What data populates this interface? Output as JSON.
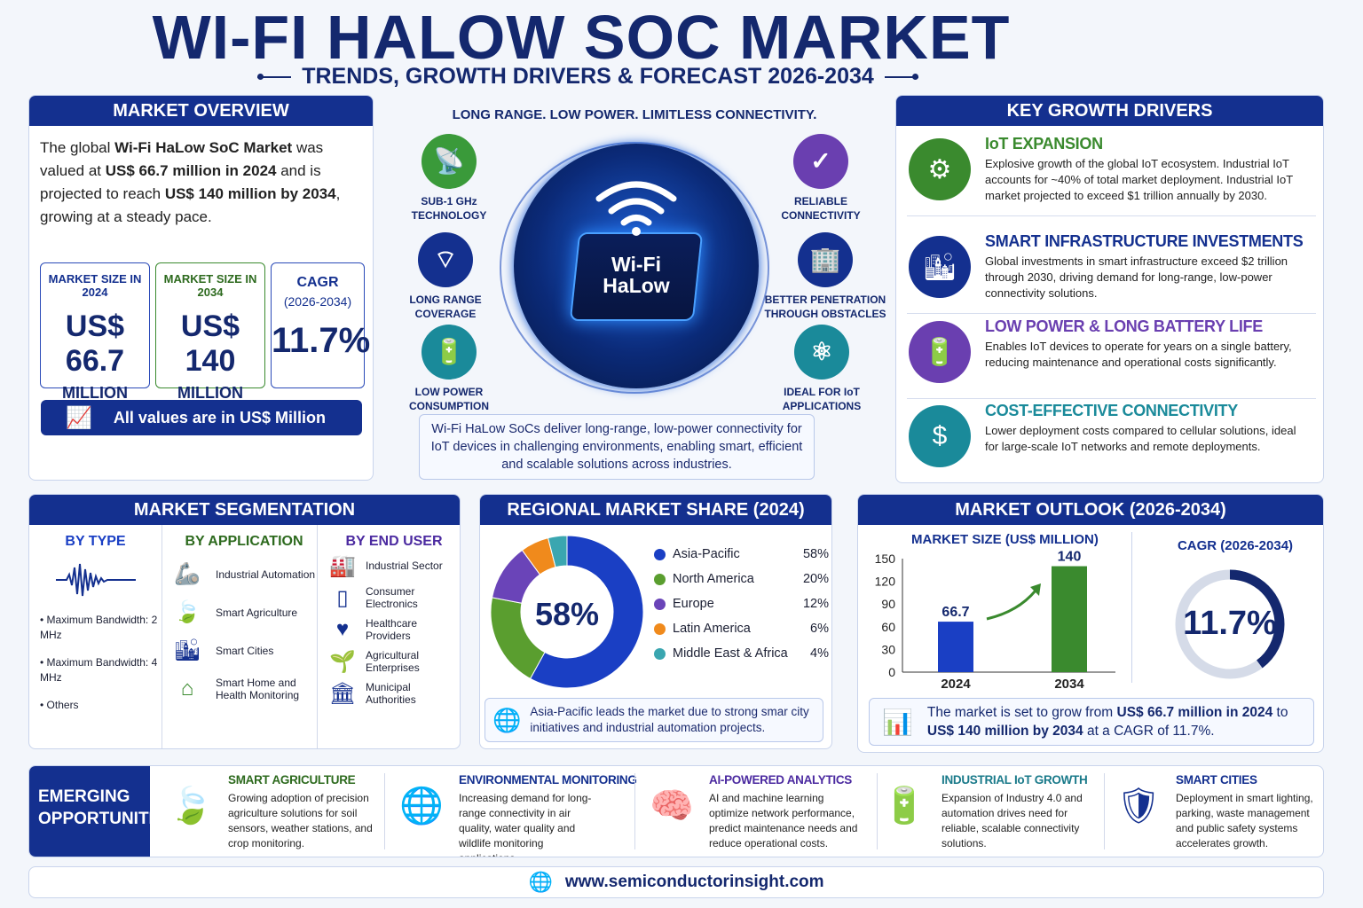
{
  "header": {
    "title": "WI-FI HALOW SOC MARKET",
    "subtitle": "TRENDS, GROWTH DRIVERS & FORECAST 2026-2034"
  },
  "overview": {
    "heading": "MARKET OVERVIEW",
    "p1": "The global ",
    "p2": "Wi-Fi HaLow SoC Market",
    "p3": " was valued at ",
    "p4": "US$ 66.7 million in 2024",
    "p5": " and is projected to reach ",
    "p6": "US$ 140 million by 2034",
    "p7": ", growing at a steady pace.",
    "stats": [
      {
        "label": "MARKET SIZE IN 2024",
        "value": "US$ 66.7",
        "unit": "MILLION",
        "color": "#2a4ab8"
      },
      {
        "label": "MARKET SIZE IN 2034",
        "value": "US$ 140",
        "unit": "MILLION",
        "color": "#3a8a2e"
      },
      {
        "label": "CAGR",
        "sub": "(2026-2034)",
        "value": "11.7%",
        "color": "#2a4ab8"
      }
    ],
    "note": "All values are in US$ Million"
  },
  "center": {
    "tagline": "LONG RANGE. LOW POWER. LIMITLESS CONNECTIVITY.",
    "chip_line1": "Wi-Fi",
    "chip_line2": "HaLow",
    "features": [
      {
        "l1": "SUB-1 GHz",
        "l2": "TECHNOLOGY",
        "icon": "antenna-icon",
        "color": "#3a9a3a"
      },
      {
        "l1": "LONG RANGE",
        "l2": "COVERAGE",
        "icon": "signal-icon",
        "color": "#14308f"
      },
      {
        "l1": "LOW POWER",
        "l2": "CONSUMPTION",
        "icon": "battery-leaf-icon",
        "color": "#1a8a9a"
      },
      {
        "l1": "RELIABLE",
        "l2": "CONNECTIVITY",
        "icon": "shield-check-icon",
        "color": "#6a3fb0"
      },
      {
        "l1": "BETTER PENETRATION",
        "l2": "THROUGH OBSTACLES",
        "icon": "building-icon",
        "color": "#14308f"
      },
      {
        "l1": "IDEAL FOR IoT",
        "l2": "APPLICATIONS",
        "icon": "network-icon",
        "color": "#1a8a9a"
      }
    ],
    "note": "Wi-Fi HaLow SoCs deliver long-range, low-power connectivity for IoT devices in challenging environments, enabling smart, efficient and scalable solutions across industries."
  },
  "drivers": {
    "heading": "KEY GROWTH DRIVERS",
    "items": [
      {
        "title": "IoT EXPANSION",
        "text": "Explosive growth of the global IoT ecosystem. Industrial IoT accounts for ~40% of total market deployment. Industrial IoT market projected to exceed $1 trillion annually by 2030.",
        "color": "#3a8a2e",
        "icon": "iot-devices-icon"
      },
      {
        "title": "SMART INFRASTRUCTURE INVESTMENTS",
        "text": "Global investments in smart infrastructure exceed $2 trillion through 2030, driving demand for long-range, low-power connectivity solutions.",
        "color": "#14308f",
        "icon": "city-icon"
      },
      {
        "title": "LOW POWER & LONG BATTERY LIFE",
        "text": "Enables IoT devices to operate for years on a single battery, reducing maintenance and operational costs significantly.",
        "color": "#6a3fb0",
        "icon": "battery-icon"
      },
      {
        "title": "COST-EFFECTIVE CONNECTIVITY",
        "text": "Lower deployment costs compared to cellular solutions, ideal for large-scale IoT networks and remote deployments.",
        "color": "#1a8a9a",
        "icon": "dollar-icon"
      }
    ]
  },
  "segmentation": {
    "heading": "MARKET SEGMENTATION",
    "by_type": {
      "title": "BY TYPE",
      "items": [
        "Maximum Bandwidth: 2 MHz",
        "Maximum Bandwidth: 4 MHz",
        "Others"
      ]
    },
    "by_application": {
      "title": "BY APPLICATION",
      "items": [
        {
          "label": "Industrial Automation",
          "icon": "robot-arm-icon"
        },
        {
          "label": "Smart Agriculture",
          "icon": "leaf-icon"
        },
        {
          "label": "Smart Cities",
          "icon": "buildings-icon"
        },
        {
          "label": "Smart Home and Health Monitoring",
          "icon": "home-health-icon"
        }
      ]
    },
    "by_end_user": {
      "title": "BY END USER",
      "items": [
        {
          "label": "Industrial Sector",
          "icon": "factory-icon"
        },
        {
          "label": "Consumer Electronics",
          "icon": "tablet-icon"
        },
        {
          "label": "Healthcare Providers",
          "icon": "heart-icon"
        },
        {
          "label": "Agricultural Enterprises",
          "icon": "sprout-icon"
        },
        {
          "label": "Municipal Authorities",
          "icon": "government-icon"
        }
      ]
    }
  },
  "chart_data": [
    {
      "type": "pie",
      "title": "REGIONAL MARKET SHARE (2024)",
      "center_label": "58%",
      "categories": [
        "Asia-Pacific",
        "North America",
        "Europe",
        "Latin America",
        "Middle East & Africa"
      ],
      "values": [
        58,
        20,
        12,
        6,
        4
      ],
      "labels": [
        "58%",
        "20%",
        "12%",
        "6%",
        "4%"
      ],
      "colors": [
        "#1a3fc4",
        "#5a9e2f",
        "#6a44b8",
        "#f08a1c",
        "#3aa6b0"
      ],
      "legend": "right",
      "note": "Asia-Pacific leads the market due to strong smar city initiatives and industrial automation projects."
    },
    {
      "type": "bar",
      "title": "MARKET SIZE (US$ MILLION)",
      "categories": [
        "2024",
        "2034"
      ],
      "values": [
        66.7,
        140
      ],
      "labels": [
        "66.7",
        "140"
      ],
      "colors": [
        "#1a3fc4",
        "#3a8a2e"
      ],
      "ylim": [
        0,
        150
      ],
      "yticks": [
        "0",
        "30",
        "60",
        "90",
        "120",
        "150"
      ],
      "grid": false
    }
  ],
  "outlook": {
    "heading": "MARKET OUTLOOK (2026-2034)",
    "cagr_title": "CAGR (2026-2034)",
    "cagr_value": "11.7%",
    "note1": "The market is set to grow from ",
    "note2": "US$ 66.7 million in 2024",
    "note3": " to ",
    "note4": "US$ 140 million by 2034",
    "note5": " at a CAGR of 11.7%."
  },
  "opportunities": {
    "heading1": "EMERGING",
    "heading2": "OPPORTUNITIES",
    "items": [
      {
        "title": "SMART AGRICULTURE",
        "text": "Growing adoption of precision agriculture solutions for soil sensors, weather stations, and crop monitoring.",
        "color": "#2d6a1e",
        "icon": "leaf-circle-icon"
      },
      {
        "title": "ENVIRONMENTAL MONITORING",
        "text": "Increasing demand for long-range connectivity in air quality, water quality and wildlife monitoring applications.",
        "color": "#14308f",
        "icon": "globe-leaf-icon"
      },
      {
        "title": "AI-POWERED ANALYTICS",
        "text": "AI and machine learning optimize network performance, predict maintenance needs and reduce operational costs.",
        "color": "#4b2aa0",
        "icon": "brain-icon"
      },
      {
        "title": "INDUSTRIAL IoT GROWTH",
        "text": "Expansion of Industry 4.0 and automation drives need for reliable, scalable connectivity solutions.",
        "color": "#1a7a8a",
        "icon": "battery-device-icon"
      },
      {
        "title": "SMART CITIES",
        "text": "Deployment in smart lighting, parking, waste management and public safety systems accelerates growth.",
        "color": "#14308f",
        "icon": "shield-bulb-icon"
      }
    ]
  },
  "footer": {
    "url": "www.semiconductorinsight.com"
  }
}
